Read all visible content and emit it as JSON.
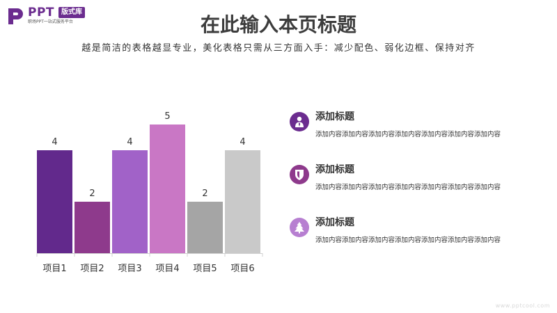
{
  "logo": {
    "brand": "PPT",
    "tag": "版式库",
    "tagline": "职场PPT一站式服务平台",
    "color": "#6b2c8f"
  },
  "header": {
    "title": "在此输入本页标题",
    "subtitle": "越是简洁的表格越显专业，美化表格只需从三方面入手：减少配色、弱化边框、保持对齐"
  },
  "chart_data": {
    "type": "bar",
    "categories": [
      "项目1",
      "项目2",
      "项目3",
      "项目4",
      "项目5",
      "项目6"
    ],
    "values": [
      4,
      2,
      4,
      5,
      2,
      4
    ],
    "colors": [
      "#62298c",
      "#8e3a8c",
      "#a162c8",
      "#c977c5",
      "#a5a5a5",
      "#c9c9c9"
    ],
    "ylim": [
      0,
      5
    ],
    "grid": false,
    "legend": "none",
    "data_labels": true
  },
  "info": {
    "items": [
      {
        "title": "添加标题",
        "text": "添加内容添加内容添加内容添加内容添加内容添加内容添加内容",
        "icon": "person-tie-icon",
        "color": "#6b2c8f"
      },
      {
        "title": "添加标题",
        "text": "添加内容添加内容添加内容添加内容添加内容添加内容添加内容",
        "icon": "shield-icon",
        "color": "#8e3a8c"
      },
      {
        "title": "添加标题",
        "text": "添加内容添加内容添加内容添加内容添加内容添加内容添加内容",
        "icon": "tree-icon",
        "color": "#b77fd1"
      }
    ]
  },
  "watermark": "www.pptcool.com"
}
